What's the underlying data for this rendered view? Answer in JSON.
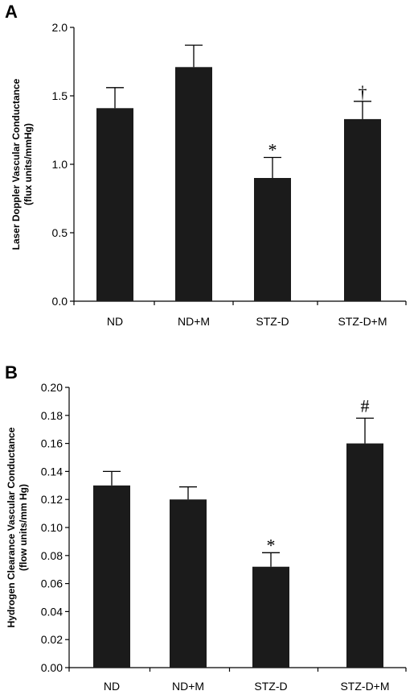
{
  "chart_data": [
    {
      "panel": "A",
      "type": "bar",
      "categories": [
        "ND",
        "ND+M",
        "STZ-D",
        "STZ-D+M"
      ],
      "values": [
        1.41,
        1.71,
        0.9,
        1.33
      ],
      "errors": [
        0.15,
        0.16,
        0.15,
        0.13
      ],
      "markers": [
        "",
        "",
        "*",
        "†"
      ],
      "ylabel_line1": "Laser Doppler Vascular Conductance",
      "ylabel_line2": "(flux units/mmHg)",
      "xlabel": "",
      "ylim": [
        0,
        2.0
      ],
      "yticks": [
        "0.0",
        "0.5",
        "1.0",
        "1.5",
        "2.0"
      ],
      "bar_color": "#1b1b1b",
      "grid": false
    },
    {
      "panel": "B",
      "type": "bar",
      "categories": [
        "ND",
        "ND+M",
        "STZ-D",
        "STZ-D+M"
      ],
      "values": [
        0.13,
        0.12,
        0.072,
        0.16
      ],
      "errors": [
        0.01,
        0.009,
        0.01,
        0.018
      ],
      "markers": [
        "",
        "",
        "*",
        "#"
      ],
      "ylabel_line1": "Hydrogen Clearance Vascular Conductance",
      "ylabel_line2": "(flow units/mm Hg)",
      "xlabel": "",
      "ylim": [
        0,
        0.2
      ],
      "yticks": [
        "0.00",
        "0.02",
        "0.04",
        "0.06",
        "0.08",
        "0.10",
        "0.12",
        "0.14",
        "0.16",
        "0.18",
        "0.20"
      ],
      "bar_color": "#1b1b1b",
      "grid": false
    }
  ]
}
